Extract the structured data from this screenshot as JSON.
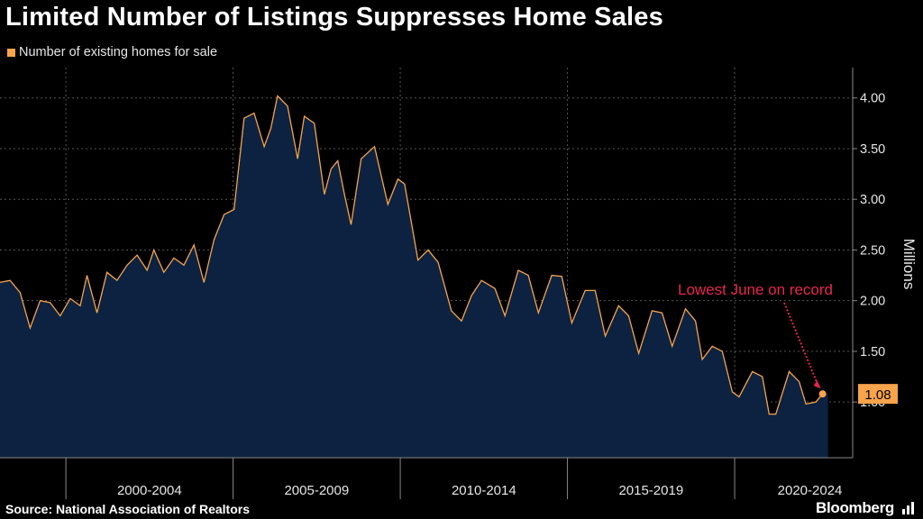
{
  "title": "Limited Number of Listings Suppresses Home Sales",
  "legend": {
    "label": "Number of existing homes for sale"
  },
  "source": "Source: National Association of Realtors",
  "brand": "Bloomberg",
  "annotation": {
    "text": "Lowest June on record"
  },
  "last_value_label": "1.08",
  "colors": {
    "line": "#f7a44a",
    "area": "#0c2240",
    "annotation": "#e8254f",
    "label_bg": "#f7a44a"
  },
  "chart_data": {
    "type": "area",
    "title": "Limited Number of Listings Suppresses Home Sales",
    "xlabel": "",
    "ylabel": "Millions",
    "ylim": [
      0.45,
      4.3
    ],
    "yticks": [
      "4.00",
      "3.50",
      "3.00",
      "2.50",
      "2.00",
      "1.50",
      "1.00"
    ],
    "yticks_values": [
      4.0,
      3.5,
      3.0,
      2.5,
      2.0,
      1.5,
      1.0
    ],
    "xlim": [
      1999.0,
      2024.5
    ],
    "x_ticks": [
      "2000-2004",
      "2005-2009",
      "2010-2014",
      "2015-2019",
      "2020-2024"
    ],
    "x_tick_centers": [
      2002.5,
      2007.5,
      2012.5,
      2017.5,
      2022.25
    ],
    "x_boundaries": [
      2000,
      2005,
      2010,
      2015,
      2020
    ],
    "series": [
      {
        "name": "Number of existing homes for sale",
        "points": [
          [
            1999.0,
            2.18
          ],
          [
            1999.3,
            2.2
          ],
          [
            1999.6,
            2.08
          ],
          [
            1999.9,
            1.73
          ],
          [
            2000.2,
            2.0
          ],
          [
            2000.5,
            1.98
          ],
          [
            2000.8,
            1.85
          ],
          [
            2001.1,
            2.02
          ],
          [
            2001.4,
            1.95
          ],
          [
            2001.6,
            2.25
          ],
          [
            2001.9,
            1.88
          ],
          [
            2002.2,
            2.28
          ],
          [
            2002.5,
            2.2
          ],
          [
            2002.8,
            2.35
          ],
          [
            2003.1,
            2.45
          ],
          [
            2003.4,
            2.3
          ],
          [
            2003.6,
            2.5
          ],
          [
            2003.9,
            2.28
          ],
          [
            2004.2,
            2.42
          ],
          [
            2004.5,
            2.35
          ],
          [
            2004.8,
            2.55
          ],
          [
            2005.1,
            2.18
          ],
          [
            2005.4,
            2.6
          ],
          [
            2005.7,
            2.85
          ],
          [
            2006.0,
            2.9
          ],
          [
            2006.3,
            3.8
          ],
          [
            2006.6,
            3.85
          ],
          [
            2006.9,
            3.52
          ],
          [
            2007.1,
            3.7
          ],
          [
            2007.3,
            4.02
          ],
          [
            2007.6,
            3.92
          ],
          [
            2007.9,
            3.4
          ],
          [
            2008.1,
            3.82
          ],
          [
            2008.4,
            3.75
          ],
          [
            2008.7,
            3.05
          ],
          [
            2008.9,
            3.3
          ],
          [
            2009.1,
            3.38
          ],
          [
            2009.3,
            3.05
          ],
          [
            2009.5,
            2.75
          ],
          [
            2009.8,
            3.4
          ],
          [
            2010.2,
            3.52
          ],
          [
            2010.6,
            2.95
          ],
          [
            2010.9,
            3.2
          ],
          [
            2011.1,
            3.15
          ],
          [
            2011.5,
            2.4
          ],
          [
            2011.8,
            2.5
          ],
          [
            2012.1,
            2.38
          ],
          [
            2012.5,
            1.9
          ],
          [
            2012.8,
            1.8
          ],
          [
            2013.1,
            2.05
          ],
          [
            2013.4,
            2.2
          ],
          [
            2013.8,
            2.12
          ],
          [
            2014.1,
            1.85
          ],
          [
            2014.5,
            2.3
          ],
          [
            2014.8,
            2.25
          ],
          [
            2015.1,
            1.88
          ],
          [
            2015.5,
            2.25
          ],
          [
            2015.8,
            2.24
          ],
          [
            2016.1,
            1.78
          ],
          [
            2016.5,
            2.1
          ],
          [
            2016.8,
            2.1
          ],
          [
            2017.1,
            1.65
          ],
          [
            2017.5,
            1.95
          ],
          [
            2017.8,
            1.85
          ],
          [
            2018.1,
            1.48
          ],
          [
            2018.5,
            1.9
          ],
          [
            2018.8,
            1.88
          ],
          [
            2019.1,
            1.55
          ],
          [
            2019.5,
            1.92
          ],
          [
            2019.8,
            1.8
          ],
          [
            2020.0,
            1.42
          ],
          [
            2020.3,
            1.55
          ],
          [
            2020.6,
            1.5
          ],
          [
            2020.9,
            1.1
          ],
          [
            2021.1,
            1.05
          ],
          [
            2021.5,
            1.3
          ],
          [
            2021.8,
            1.25
          ],
          [
            2022.0,
            0.88
          ],
          [
            2022.2,
            0.88
          ],
          [
            2022.6,
            1.3
          ],
          [
            2022.9,
            1.2
          ],
          [
            2023.1,
            0.98
          ],
          [
            2023.4,
            1.0
          ],
          [
            2023.6,
            1.08
          ]
        ]
      }
    ],
    "last_value": 1.08,
    "annotations": [
      {
        "text": "Lowest June on record",
        "x": 2023.6,
        "y": 1.08
      }
    ]
  }
}
